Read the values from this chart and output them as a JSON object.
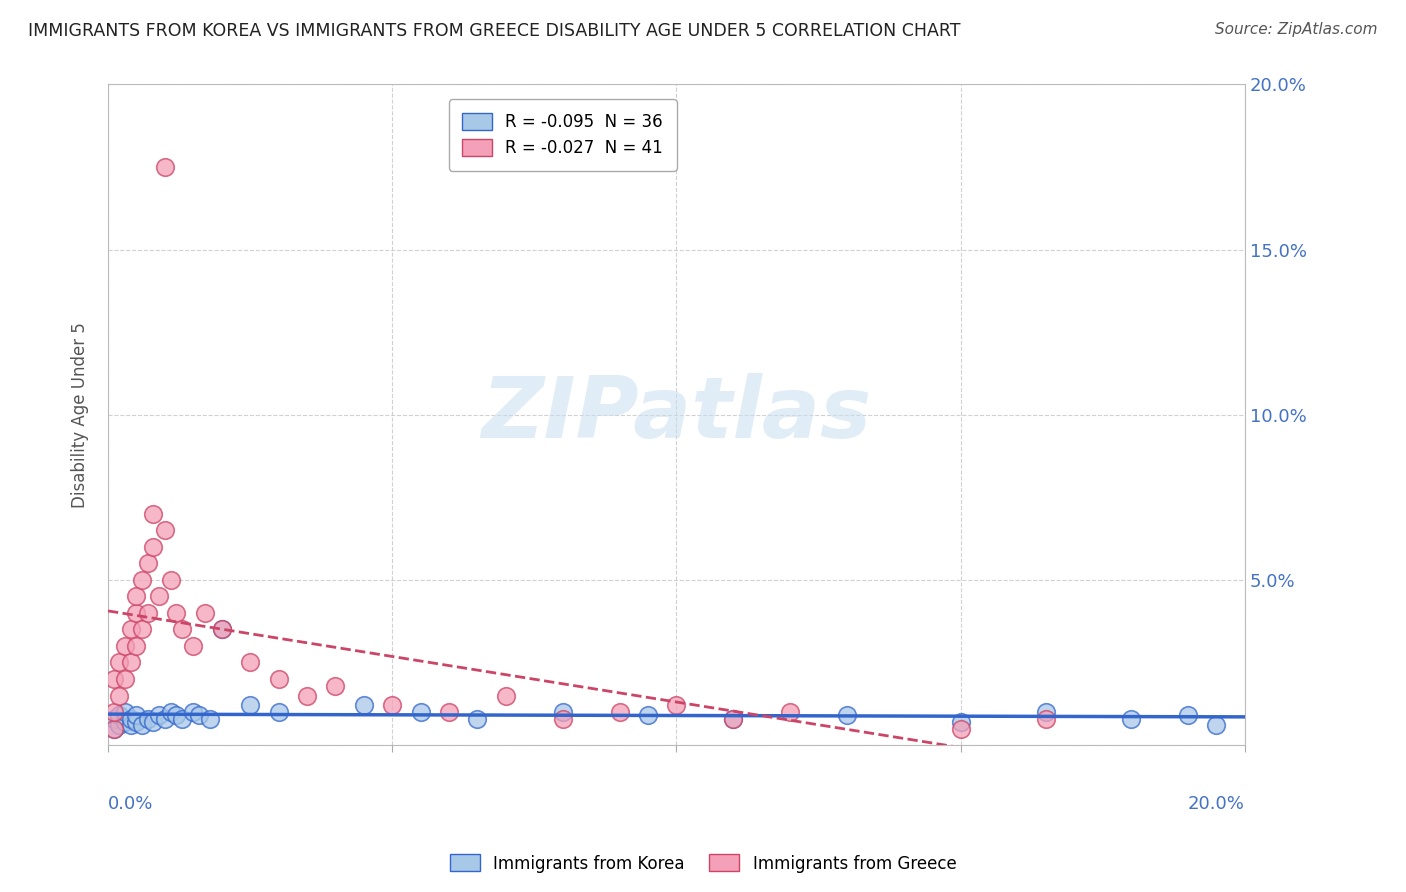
{
  "title": "IMMIGRANTS FROM KOREA VS IMMIGRANTS FROM GREECE DISABILITY AGE UNDER 5 CORRELATION CHART",
  "source": "Source: ZipAtlas.com",
  "ylabel": "Disability Age Under 5",
  "xlim": [
    0.0,
    0.2
  ],
  "ylim": [
    0.0,
    0.2
  ],
  "korea_color": "#A8C8E8",
  "greece_color": "#F4A0B8",
  "korea_line_color": "#3366CC",
  "greece_line_color": "#CC4466",
  "watermark": "ZIPatlas",
  "background_color": "#FFFFFF",
  "korea_x": [
    0.001,
    0.001,
    0.002,
    0.002,
    0.003,
    0.003,
    0.004,
    0.004,
    0.005,
    0.005,
    0.006,
    0.007,
    0.008,
    0.009,
    0.01,
    0.011,
    0.012,
    0.013,
    0.015,
    0.016,
    0.018,
    0.02,
    0.025,
    0.03,
    0.045,
    0.055,
    0.065,
    0.08,
    0.095,
    0.11,
    0.13,
    0.15,
    0.165,
    0.18,
    0.19,
    0.195
  ],
  "korea_y": [
    0.005,
    0.008,
    0.006,
    0.009,
    0.007,
    0.01,
    0.006,
    0.008,
    0.007,
    0.009,
    0.006,
    0.008,
    0.007,
    0.009,
    0.008,
    0.01,
    0.009,
    0.008,
    0.01,
    0.009,
    0.008,
    0.035,
    0.012,
    0.01,
    0.012,
    0.01,
    0.008,
    0.01,
    0.009,
    0.008,
    0.009,
    0.007,
    0.01,
    0.008,
    0.009,
    0.006
  ],
  "greece_x": [
    0.001,
    0.001,
    0.001,
    0.002,
    0.002,
    0.003,
    0.003,
    0.004,
    0.004,
    0.005,
    0.005,
    0.005,
    0.006,
    0.006,
    0.007,
    0.007,
    0.008,
    0.008,
    0.009,
    0.01,
    0.01,
    0.011,
    0.012,
    0.013,
    0.015,
    0.017,
    0.02,
    0.025,
    0.03,
    0.035,
    0.04,
    0.05,
    0.06,
    0.07,
    0.08,
    0.09,
    0.1,
    0.11,
    0.12,
    0.15,
    0.165
  ],
  "greece_y": [
    0.005,
    0.01,
    0.02,
    0.015,
    0.025,
    0.02,
    0.03,
    0.025,
    0.035,
    0.03,
    0.04,
    0.045,
    0.035,
    0.05,
    0.04,
    0.055,
    0.06,
    0.07,
    0.045,
    0.065,
    0.175,
    0.05,
    0.04,
    0.035,
    0.03,
    0.04,
    0.035,
    0.025,
    0.02,
    0.015,
    0.018,
    0.012,
    0.01,
    0.015,
    0.008,
    0.01,
    0.012,
    0.008,
    0.01,
    0.005,
    0.008
  ]
}
